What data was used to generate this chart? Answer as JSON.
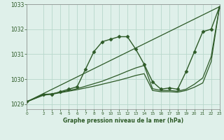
{
  "background_color": "#dff0ea",
  "grid_color": "#b8d8cc",
  "line_color": "#2d5a27",
  "title": "Graphe pression niveau de la mer (hPa)",
  "xlim": [
    0,
    23
  ],
  "ylim": [
    1028.8,
    1033.0
  ],
  "yticks": [
    1029,
    1030,
    1031,
    1032,
    1033
  ],
  "xticks": [
    0,
    2,
    3,
    4,
    5,
    6,
    7,
    8,
    9,
    10,
    11,
    12,
    13,
    14,
    15,
    16,
    17,
    18,
    19,
    20,
    21,
    22,
    23
  ],
  "series": [
    {
      "x": [
        0,
        2,
        3,
        4,
        5,
        6,
        7,
        8,
        9,
        10,
        11,
        12,
        13,
        14,
        15,
        16,
        17,
        18,
        19,
        20,
        21,
        22,
        23
      ],
      "y": [
        1029.1,
        1029.4,
        1029.4,
        1029.5,
        1029.6,
        1029.7,
        1030.4,
        1031.1,
        1031.5,
        1031.6,
        1031.7,
        1031.7,
        1031.2,
        1030.6,
        1029.9,
        1029.6,
        1029.65,
        1029.6,
        1030.3,
        1031.1,
        1031.9,
        1032.0,
        1032.9
      ],
      "marker": "D",
      "markersize": 2.5,
      "linewidth": 1.0
    },
    {
      "x": [
        0,
        2,
        3,
        4,
        5,
        6,
        7,
        8,
        9,
        10,
        11,
        12,
        13,
        14,
        15,
        16,
        17,
        18,
        19,
        20,
        21,
        22,
        23
      ],
      "y": [
        1029.1,
        1029.38,
        1029.42,
        1029.48,
        1029.55,
        1029.62,
        1029.72,
        1029.82,
        1029.92,
        1030.05,
        1030.18,
        1030.32,
        1030.45,
        1030.55,
        1029.62,
        1029.55,
        1029.55,
        1029.52,
        1029.6,
        1029.8,
        1030.05,
        1030.9,
        1032.9
      ],
      "marker": null,
      "markersize": 0,
      "linewidth": 0.9
    },
    {
      "x": [
        0,
        2,
        3,
        4,
        5,
        6,
        7,
        8,
        9,
        10,
        11,
        12,
        13,
        14,
        15,
        16,
        17,
        18,
        19,
        20,
        21,
        22,
        23
      ],
      "y": [
        1029.1,
        1029.36,
        1029.4,
        1029.46,
        1029.52,
        1029.58,
        1029.65,
        1029.72,
        1029.8,
        1029.88,
        1029.96,
        1030.05,
        1030.15,
        1030.22,
        1029.55,
        1029.5,
        1029.5,
        1029.48,
        1029.55,
        1029.68,
        1029.85,
        1030.7,
        1032.9
      ],
      "marker": null,
      "markersize": 0,
      "linewidth": 0.9
    },
    {
      "x": [
        0,
        23
      ],
      "y": [
        1029.1,
        1032.9
      ],
      "marker": null,
      "markersize": 0,
      "linewidth": 0.9
    }
  ]
}
